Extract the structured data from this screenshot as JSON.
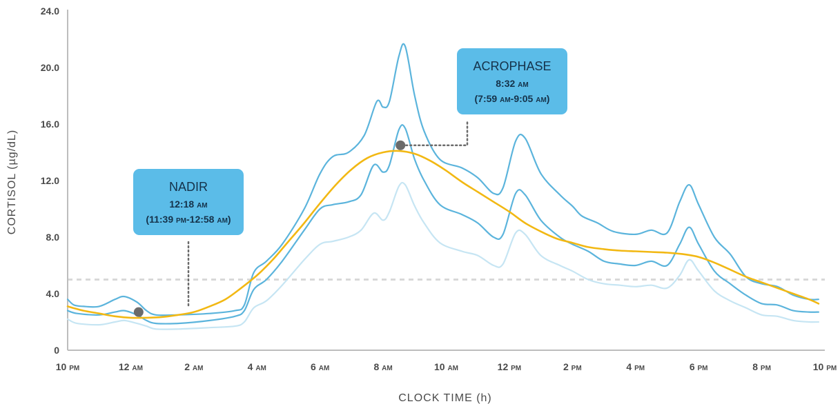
{
  "chart_data": {
    "type": "line",
    "xlabel": "CLOCK TIME (h)",
    "ylabel": "CORTISOL (µg/dL)",
    "xlim": [
      0,
      24
    ],
    "ylim": [
      0,
      24
    ],
    "x_ticks": [
      {
        "x": 0,
        "num": "10",
        "suffix": "PM"
      },
      {
        "x": 2,
        "num": "12",
        "suffix": "AM"
      },
      {
        "x": 4,
        "num": "2",
        "suffix": "AM"
      },
      {
        "x": 6,
        "num": "4",
        "suffix": "AM"
      },
      {
        "x": 8,
        "num": "6",
        "suffix": "AM"
      },
      {
        "x": 10,
        "num": "8",
        "suffix": "AM"
      },
      {
        "x": 12,
        "num": "10",
        "suffix": "AM"
      },
      {
        "x": 14,
        "num": "12",
        "suffix": "PM"
      },
      {
        "x": 16,
        "num": "2",
        "suffix": "PM"
      },
      {
        "x": 18,
        "num": "4",
        "suffix": "PM"
      },
      {
        "x": 20,
        "num": "6",
        "suffix": "PM"
      },
      {
        "x": 22,
        "num": "8",
        "suffix": "PM"
      },
      {
        "x": 24,
        "num": "10",
        "suffix": "PM"
      }
    ],
    "y_ticks": [
      {
        "y": 0,
        "label": "0"
      },
      {
        "y": 4,
        "label": "4.0"
      },
      {
        "y": 8,
        "label": "8.0"
      },
      {
        "y": 12,
        "label": "12.0"
      },
      {
        "y": 16,
        "label": "16.0"
      },
      {
        "y": 20,
        "label": "20.0"
      },
      {
        "y": 24,
        "label": "24.0"
      }
    ],
    "reference_line": {
      "y": 5.0,
      "color": "#d8d8d8",
      "style": "dashed"
    },
    "grid": false,
    "series": [
      {
        "role": "upper",
        "color": "#5bb4dc",
        "points": [
          [
            0,
            3.6
          ],
          [
            0.2,
            3.2
          ],
          [
            0.5,
            3.1
          ],
          [
            1.0,
            3.1
          ],
          [
            1.5,
            3.6
          ],
          [
            1.8,
            3.8
          ],
          [
            2.2,
            3.4
          ],
          [
            2.5,
            2.8
          ],
          [
            2.8,
            2.5
          ],
          [
            3.5,
            2.5
          ],
          [
            4.5,
            2.6
          ],
          [
            5.3,
            2.8
          ],
          [
            5.6,
            3.2
          ],
          [
            5.9,
            5.5
          ],
          [
            6.3,
            6.3
          ],
          [
            6.8,
            7.5
          ],
          [
            7.5,
            10.0
          ],
          [
            8.0,
            12.5
          ],
          [
            8.4,
            13.7
          ],
          [
            8.9,
            14.0
          ],
          [
            9.4,
            15.2
          ],
          [
            9.8,
            17.6
          ],
          [
            10.0,
            17.2
          ],
          [
            10.2,
            17.6
          ],
          [
            10.5,
            20.8
          ],
          [
            10.7,
            21.5
          ],
          [
            11.0,
            18.0
          ],
          [
            11.3,
            15.5
          ],
          [
            11.8,
            13.5
          ],
          [
            12.5,
            12.9
          ],
          [
            13.0,
            12.2
          ],
          [
            13.5,
            11.1
          ],
          [
            13.8,
            11.5
          ],
          [
            14.2,
            14.8
          ],
          [
            14.5,
            15.0
          ],
          [
            15.0,
            12.5
          ],
          [
            15.6,
            11.0
          ],
          [
            16.0,
            10.2
          ],
          [
            16.3,
            9.5
          ],
          [
            16.8,
            9.0
          ],
          [
            17.3,
            8.4
          ],
          [
            18.0,
            8.2
          ],
          [
            18.5,
            8.5
          ],
          [
            19.0,
            8.3
          ],
          [
            19.4,
            10.5
          ],
          [
            19.7,
            11.7
          ],
          [
            20.0,
            10.3
          ],
          [
            20.5,
            8.0
          ],
          [
            21.0,
            6.8
          ],
          [
            21.5,
            5.2
          ],
          [
            22.0,
            4.7
          ],
          [
            22.5,
            4.5
          ],
          [
            23.0,
            3.9
          ],
          [
            23.5,
            3.6
          ],
          [
            23.8,
            3.6
          ]
        ]
      },
      {
        "role": "middle",
        "color": "#5bb4dc",
        "points": [
          [
            0,
            2.8
          ],
          [
            0.3,
            2.6
          ],
          [
            1.0,
            2.5
          ],
          [
            1.5,
            2.7
          ],
          [
            1.8,
            2.8
          ],
          [
            2.2,
            2.5
          ],
          [
            2.5,
            2.1
          ],
          [
            2.8,
            1.9
          ],
          [
            3.5,
            1.9
          ],
          [
            4.5,
            2.1
          ],
          [
            5.3,
            2.4
          ],
          [
            5.6,
            2.8
          ],
          [
            5.9,
            4.3
          ],
          [
            6.3,
            5.0
          ],
          [
            6.8,
            6.3
          ],
          [
            7.5,
            8.5
          ],
          [
            8.0,
            10.0
          ],
          [
            8.4,
            10.3
          ],
          [
            8.9,
            10.5
          ],
          [
            9.3,
            11.0
          ],
          [
            9.7,
            13.1
          ],
          [
            10.0,
            12.6
          ],
          [
            10.2,
            13.1
          ],
          [
            10.5,
            15.6
          ],
          [
            10.7,
            15.7
          ],
          [
            11.0,
            13.5
          ],
          [
            11.3,
            12.0
          ],
          [
            11.8,
            10.3
          ],
          [
            12.5,
            9.6
          ],
          [
            13.0,
            9.0
          ],
          [
            13.5,
            8.0
          ],
          [
            13.8,
            8.2
          ],
          [
            14.2,
            11.1
          ],
          [
            14.5,
            11.0
          ],
          [
            15.0,
            9.2
          ],
          [
            15.6,
            8.0
          ],
          [
            16.0,
            7.5
          ],
          [
            16.5,
            7.0
          ],
          [
            17.0,
            6.3
          ],
          [
            17.5,
            6.1
          ],
          [
            18.0,
            6.0
          ],
          [
            18.5,
            6.3
          ],
          [
            19.0,
            6.0
          ],
          [
            19.4,
            7.5
          ],
          [
            19.7,
            8.7
          ],
          [
            20.0,
            7.5
          ],
          [
            20.5,
            5.6
          ],
          [
            21.0,
            4.7
          ],
          [
            21.5,
            3.9
          ],
          [
            22.0,
            3.3
          ],
          [
            22.5,
            3.2
          ],
          [
            23.0,
            2.8
          ],
          [
            23.5,
            2.7
          ],
          [
            23.8,
            2.7
          ]
        ]
      },
      {
        "role": "lower",
        "color": "#c6e5f3",
        "points": [
          [
            0,
            2.2
          ],
          [
            0.3,
            1.9
          ],
          [
            1.0,
            1.8
          ],
          [
            1.5,
            2.0
          ],
          [
            1.8,
            2.1
          ],
          [
            2.2,
            1.9
          ],
          [
            2.5,
            1.7
          ],
          [
            2.8,
            1.5
          ],
          [
            3.5,
            1.5
          ],
          [
            4.5,
            1.6
          ],
          [
            5.3,
            1.7
          ],
          [
            5.6,
            2.0
          ],
          [
            5.9,
            3.0
          ],
          [
            6.3,
            3.5
          ],
          [
            6.8,
            4.6
          ],
          [
            7.5,
            6.4
          ],
          [
            8.0,
            7.5
          ],
          [
            8.4,
            7.7
          ],
          [
            8.9,
            8.0
          ],
          [
            9.3,
            8.5
          ],
          [
            9.7,
            9.7
          ],
          [
            10.0,
            9.2
          ],
          [
            10.2,
            9.8
          ],
          [
            10.5,
            11.6
          ],
          [
            10.7,
            11.7
          ],
          [
            11.0,
            10.2
          ],
          [
            11.3,
            9.0
          ],
          [
            11.8,
            7.6
          ],
          [
            12.5,
            7.0
          ],
          [
            13.0,
            6.7
          ],
          [
            13.5,
            6.0
          ],
          [
            13.8,
            6.1
          ],
          [
            14.2,
            8.3
          ],
          [
            14.5,
            8.2
          ],
          [
            15.0,
            6.7
          ],
          [
            15.6,
            6.0
          ],
          [
            16.0,
            5.6
          ],
          [
            16.5,
            5.0
          ],
          [
            17.0,
            4.7
          ],
          [
            17.5,
            4.6
          ],
          [
            18.0,
            4.5
          ],
          [
            18.5,
            4.6
          ],
          [
            19.0,
            4.4
          ],
          [
            19.4,
            5.3
          ],
          [
            19.7,
            6.4
          ],
          [
            20.0,
            5.6
          ],
          [
            20.5,
            4.2
          ],
          [
            21.0,
            3.5
          ],
          [
            21.5,
            3.0
          ],
          [
            22.0,
            2.5
          ],
          [
            22.5,
            2.4
          ],
          [
            23.0,
            2.1
          ],
          [
            23.5,
            2.0
          ],
          [
            23.8,
            2.0
          ]
        ]
      },
      {
        "role": "fit",
        "color": "#f2b813",
        "width": 2.6,
        "points": [
          [
            0,
            3.1
          ],
          [
            0.5,
            2.8
          ],
          [
            1.0,
            2.6
          ],
          [
            1.5,
            2.4
          ],
          [
            2.0,
            2.3
          ],
          [
            2.5,
            2.3
          ],
          [
            3.0,
            2.35
          ],
          [
            3.5,
            2.5
          ],
          [
            4.0,
            2.7
          ],
          [
            4.5,
            3.1
          ],
          [
            5.0,
            3.6
          ],
          [
            5.5,
            4.4
          ],
          [
            6.0,
            5.3
          ],
          [
            6.5,
            6.4
          ],
          [
            7.0,
            7.7
          ],
          [
            7.5,
            9.0
          ],
          [
            8.0,
            10.4
          ],
          [
            8.5,
            11.7
          ],
          [
            9.0,
            12.8
          ],
          [
            9.5,
            13.6
          ],
          [
            10.0,
            14.0
          ],
          [
            10.5,
            14.1
          ],
          [
            11.0,
            13.9
          ],
          [
            11.5,
            13.4
          ],
          [
            12.0,
            12.7
          ],
          [
            12.5,
            11.9
          ],
          [
            13.0,
            11.2
          ],
          [
            13.5,
            10.5
          ],
          [
            14.0,
            9.8
          ],
          [
            14.5,
            9.0
          ],
          [
            15.0,
            8.4
          ],
          [
            15.5,
            7.9
          ],
          [
            16.0,
            7.6
          ],
          [
            16.5,
            7.3
          ],
          [
            17.0,
            7.15
          ],
          [
            17.5,
            7.05
          ],
          [
            18.0,
            7.0
          ],
          [
            18.5,
            6.95
          ],
          [
            19.0,
            6.9
          ],
          [
            19.5,
            6.8
          ],
          [
            20.0,
            6.6
          ],
          [
            20.5,
            6.2
          ],
          [
            21.0,
            5.7
          ],
          [
            21.5,
            5.2
          ],
          [
            22.0,
            4.8
          ],
          [
            22.5,
            4.4
          ],
          [
            23.0,
            4.0
          ],
          [
            23.5,
            3.6
          ],
          [
            23.8,
            3.3
          ]
        ]
      }
    ],
    "annotations": [
      {
        "id": "nadir",
        "x": 2.25,
        "y": 2.7,
        "title": "NADIR",
        "line1_time": "12:18",
        "line1_suffix": "AM",
        "line2_open": "(11:39",
        "line2_suffix1": "PM",
        "line2_mid": "-12:58",
        "line2_suffix2": "AM",
        "line2_close": ")"
      },
      {
        "id": "acrophase",
        "x": 10.55,
        "y": 14.5,
        "title": "ACROPHASE",
        "line1_time": "8:32",
        "line1_suffix": "AM",
        "line2_open": "(7:59",
        "line2_suffix1": "AM",
        "line2_mid": "-9:05",
        "line2_suffix2": "AM",
        "line2_close": ")"
      }
    ],
    "callout_color": "#5bbce8",
    "marker_color": "#6b6b6b"
  }
}
